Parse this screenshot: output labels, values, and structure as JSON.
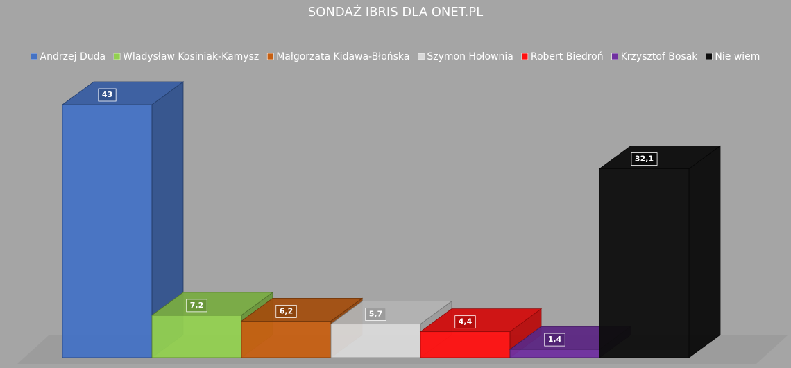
{
  "chart_data": {
    "type": "bar3d",
    "title": "SONDAŻ IBRIS DLA ONET.PL",
    "series": [
      {
        "name": "Andrzej Duda",
        "color": "#4472c4",
        "values": [
          43
        ],
        "value_labels": [
          "43"
        ]
      },
      {
        "name": "Władysław Kosiniak-Kamysz",
        "color": "#92d050",
        "values": [
          7.2
        ],
        "value_labels": [
          "7,2"
        ]
      },
      {
        "name": "Małgorzata Kidawa-Błońska",
        "color": "#c65f12",
        "values": [
          6.2
        ],
        "value_labels": [
          "6,2"
        ]
      },
      {
        "name": "Szymon Hołownia",
        "color": "#d9d9d9",
        "values": [
          5.7
        ],
        "value_labels": [
          "5,7"
        ]
      },
      {
        "name": "Robert Biedroń",
        "color": "#ff1010",
        "values": [
          4.4
        ],
        "value_labels": [
          "4,4"
        ]
      },
      {
        "name": "Krzysztof Bosak",
        "color": "#7030a0",
        "values": [
          1.4
        ],
        "value_labels": [
          "1,4"
        ]
      },
      {
        "name": "Nie wiem",
        "color": "#0d0d0d",
        "values": [
          32.1
        ],
        "value_labels": [
          "32,1"
        ]
      }
    ],
    "legend": "top"
  }
}
